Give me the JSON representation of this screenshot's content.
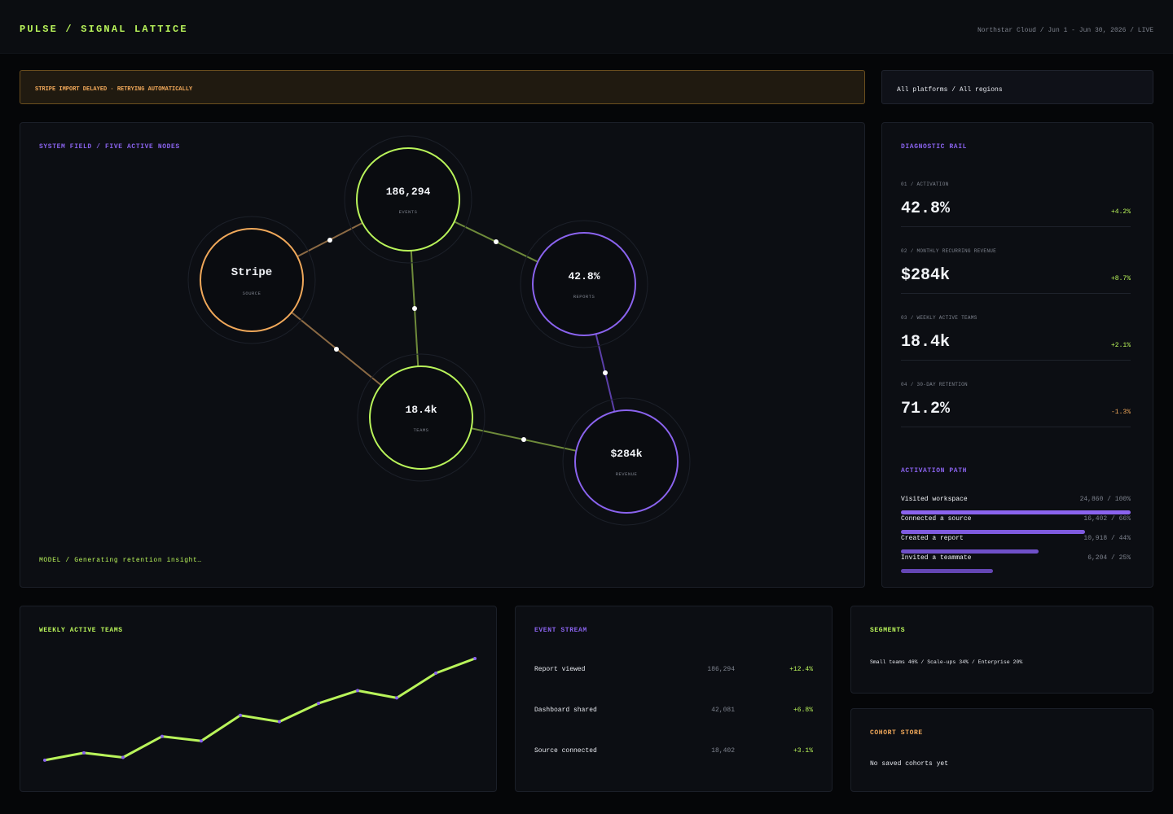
{
  "header": {
    "brand": "PULSE / SIGNAL LATTICE",
    "meta": "Northstar Cloud / Jun 1 - Jun 30, 2026 / LIVE"
  },
  "alert": {
    "text": "STRIPE IMPORT DELAYED · RETRYING AUTOMATICALLY"
  },
  "filter": {
    "text": "All platforms / All regions"
  },
  "system_field": {
    "title": "SYSTEM FIELD / FIVE ACTIVE NODES",
    "footer": "MODEL / Generating retention insight…",
    "nodes": [
      {
        "id": "events",
        "value": "186,294",
        "label": "EVENTS",
        "color": "#b9f45a"
      },
      {
        "id": "source",
        "value": "Stripe",
        "label": "SOURCE",
        "color": "#f0a85a"
      },
      {
        "id": "reports",
        "value": "42.8%",
        "label": "REPORTS",
        "color": "#8a63ee"
      },
      {
        "id": "teams",
        "value": "18.4k",
        "label": "TEAMS",
        "color": "#b9f45a"
      },
      {
        "id": "revenue",
        "value": "$284k",
        "label": "REVENUE",
        "color": "#8a63ee"
      }
    ]
  },
  "diagnostic_rail": {
    "title": "DIAGNOSTIC RAIL",
    "metrics": [
      {
        "label": "01 / ACTIVATION",
        "value": "42.8%",
        "delta": "+4.2%",
        "trend": "up"
      },
      {
        "label": "02 / MONTHLY RECURRING REVENUE",
        "value": "$284k",
        "delta": "+8.7%",
        "trend": "up"
      },
      {
        "label": "03 / WEEKLY ACTIVE TEAMS",
        "value": "18.4k",
        "delta": "+2.1%",
        "trend": "up"
      },
      {
        "label": "04 / 30-DAY RETENTION",
        "value": "71.2%",
        "delta": "-1.3%",
        "trend": "down"
      }
    ],
    "funnel_title": "ACTIVATION PATH",
    "funnel": [
      {
        "label": "Visited workspace",
        "count": "24,860 / 100%",
        "fraction": 1.0
      },
      {
        "label": "Connected a source",
        "count": "16,402 / 66%",
        "fraction": 0.8
      },
      {
        "label": "Created a report",
        "count": "10,918 / 44%",
        "fraction": 0.6
      },
      {
        "label": "Invited a teammate",
        "count": "6,204 / 25%",
        "fraction": 0.4
      }
    ]
  },
  "weekly_active": {
    "title": "WEEKLY ACTIVE TEAMS"
  },
  "chart_data": {
    "type": "line",
    "title": "",
    "x": [
      1,
      2,
      3,
      4,
      5,
      6,
      7,
      8,
      9,
      10,
      11,
      12
    ],
    "series": [
      {
        "values": [
          0.5,
          4.5,
          2,
          13.5,
          11,
          25,
          21.5,
          31.5,
          38.5,
          34.5,
          48,
          56
        ]
      }
    ],
    "ylim": [
      0,
      60
    ],
    "grid": false,
    "line_color": "#b9f45a",
    "point_color": "#8a63ee"
  },
  "event_stream": {
    "title": "EVENT STREAM",
    "rows": [
      {
        "name": "Report viewed",
        "count": "186,294",
        "delta": "+12.4%"
      },
      {
        "name": "Dashboard shared",
        "count": "42,081",
        "delta": "+6.8%"
      },
      {
        "name": "Source connected",
        "count": "18,402",
        "delta": "+3.1%"
      }
    ]
  },
  "segments": {
    "title": "SEGMENTS",
    "text": "Small teams 46% / Scale-ups 34% / Enterprise 20%"
  },
  "cohort_store": {
    "title": "COHORT STORE",
    "text": "No saved cohorts yet"
  },
  "colors": {
    "accent_green": "#b9f45a",
    "accent_violet": "#8a63ee",
    "accent_orange": "#f0a85a"
  }
}
